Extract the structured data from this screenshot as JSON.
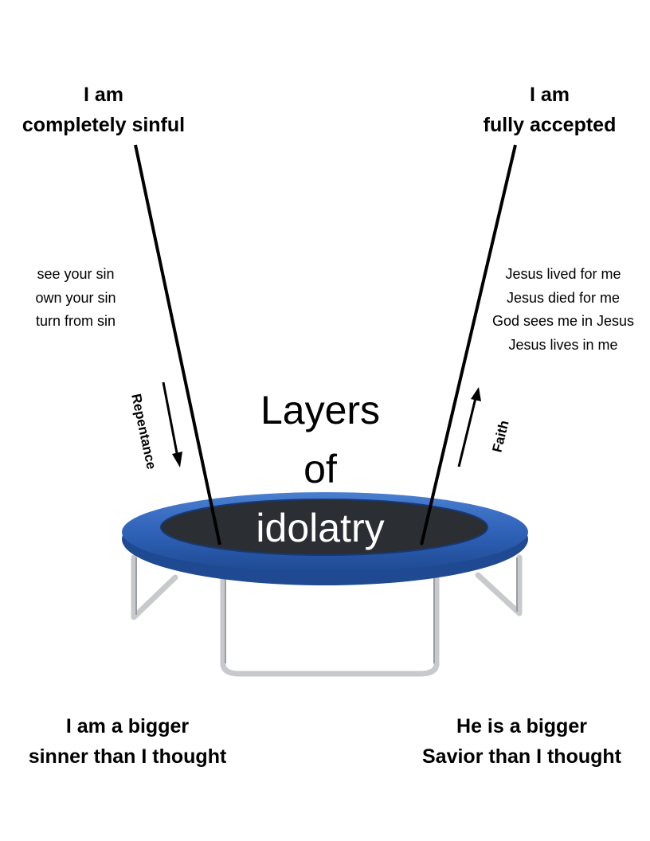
{
  "diagram": {
    "left_top": {
      "line1": "I am",
      "line2": "completely sinful"
    },
    "right_top": {
      "line1": "I am",
      "line2": "fully accepted"
    },
    "left_steps": [
      "see your sin",
      "own your sin",
      "turn from sin"
    ],
    "right_steps": [
      "Jesus lived for me",
      "Jesus died for me",
      "God sees me in Jesus",
      "Jesus lives in me"
    ],
    "left_arrow_label": "Repentance",
    "right_arrow_label": "Faith",
    "center": {
      "line1": "Layers",
      "line2": "of",
      "line3": "idolatry"
    },
    "left_bottom": {
      "line1": "I am a bigger",
      "line2": "sinner than I thought"
    },
    "right_bottom": {
      "line1": "He is a bigger",
      "line2": "Savior than I thought"
    }
  },
  "colors": {
    "pad_blue": "#2f62b8",
    "pad_blue_dark": "#1f4a92",
    "mat": "#2b2e33",
    "frame": "#c7c9cc"
  }
}
